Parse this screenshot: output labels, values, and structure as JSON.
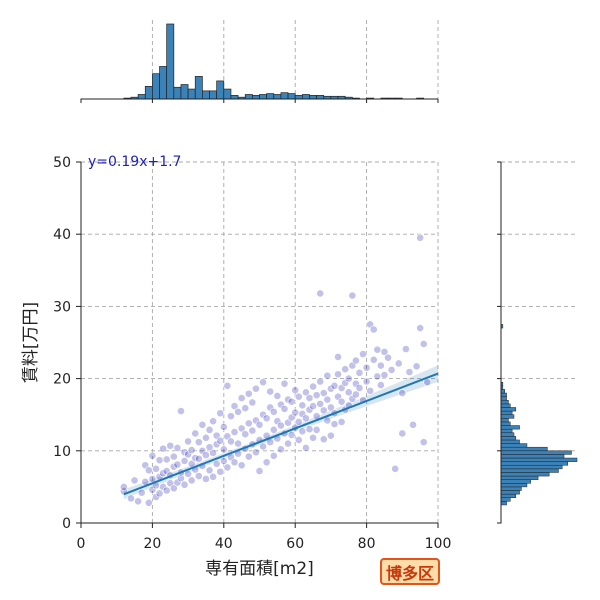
{
  "chart_data": {
    "type": "scatter",
    "xlabel": "専有面積[m2]",
    "ylabel": "賃料[万円]",
    "xlim": [
      0,
      100
    ],
    "ylim": [
      0,
      50
    ],
    "x_ticks": [
      0,
      20,
      40,
      60,
      80,
      100
    ],
    "y_ticks": [
      0,
      10,
      20,
      30,
      40,
      50
    ],
    "grid": true,
    "regression": {
      "equation": "y=0.19x+1.7",
      "slope": 0.19,
      "intercept": 1.7,
      "x_range": [
        12,
        100
      ]
    },
    "marker_color": "#1f1fb4",
    "line_color": "#1f77b4",
    "hist_color": "#3b82b9",
    "points": [
      [
        12,
        4.4
      ],
      [
        12,
        5.0
      ],
      [
        14,
        3.4
      ],
      [
        15,
        5.9
      ],
      [
        16,
        3.0
      ],
      [
        17,
        4.2
      ],
      [
        18,
        5.7
      ],
      [
        18,
        8.0
      ],
      [
        19,
        2.8
      ],
      [
        19,
        7.3
      ],
      [
        20,
        4.6
      ],
      [
        20,
        6.1
      ],
      [
        20,
        9.3
      ],
      [
        21,
        3.6
      ],
      [
        21,
        5.2
      ],
      [
        21,
        7.5
      ],
      [
        22,
        4.1
      ],
      [
        22,
        6.4
      ],
      [
        22,
        8.7
      ],
      [
        23,
        5.0
      ],
      [
        23,
        6.9
      ],
      [
        23,
        10.3
      ],
      [
        24,
        4.5
      ],
      [
        24,
        7.2
      ],
      [
        24,
        8.8
      ],
      [
        25,
        5.5
      ],
      [
        25,
        6.6
      ],
      [
        25,
        10.7
      ],
      [
        26,
        4.8
      ],
      [
        26,
        7.8
      ],
      [
        26,
        9.2
      ],
      [
        27,
        5.6
      ],
      [
        27,
        8.1
      ],
      [
        27,
        10.4
      ],
      [
        28,
        6.2
      ],
      [
        28,
        7.0
      ],
      [
        28,
        15.5
      ],
      [
        29,
        5.3
      ],
      [
        29,
        8.6
      ],
      [
        29,
        9.8
      ],
      [
        30,
        6.8
      ],
      [
        30,
        9.5
      ],
      [
        30,
        11.3
      ],
      [
        31,
        5.9
      ],
      [
        31,
        8.2
      ],
      [
        31,
        10.1
      ],
      [
        32,
        7.4
      ],
      [
        32,
        9.0
      ],
      [
        32,
        12.4
      ],
      [
        33,
        6.5
      ],
      [
        33,
        8.9
      ],
      [
        33,
        11.2
      ],
      [
        34,
        7.9
      ],
      [
        34,
        10.0
      ],
      [
        34,
        13.6
      ],
      [
        35,
        6.1
      ],
      [
        35,
        9.4
      ],
      [
        35,
        11.8
      ],
      [
        36,
        7.3
      ],
      [
        36,
        10.5
      ],
      [
        36,
        12.9
      ],
      [
        37,
        6.4
      ],
      [
        37,
        9.7
      ],
      [
        37,
        14.1
      ],
      [
        38,
        8.2
      ],
      [
        38,
        10.9
      ],
      [
        38,
        12.1
      ],
      [
        39,
        7.1
      ],
      [
        39,
        11.4
      ],
      [
        39,
        15.2
      ],
      [
        40,
        8.6
      ],
      [
        40,
        10.2
      ],
      [
        40,
        13.3
      ],
      [
        41,
        7.7
      ],
      [
        41,
        12.0
      ],
      [
        41,
        19.0
      ],
      [
        42,
        9.1
      ],
      [
        42,
        11.3
      ],
      [
        42,
        14.8
      ],
      [
        43,
        8.4
      ],
      [
        43,
        12.6
      ],
      [
        43,
        16.2
      ],
      [
        44,
        9.6
      ],
      [
        44,
        11.0
      ],
      [
        44,
        15.4
      ],
      [
        45,
        8.0
      ],
      [
        45,
        13.1
      ],
      [
        45,
        17.3
      ],
      [
        46,
        10.3
      ],
      [
        46,
        12.3
      ],
      [
        46,
        15.9
      ],
      [
        47,
        9.2
      ],
      [
        47,
        13.8
      ],
      [
        47,
        17.9
      ],
      [
        48,
        10.9
      ],
      [
        48,
        12.8
      ],
      [
        48,
        16.7
      ],
      [
        49,
        9.8
      ],
      [
        49,
        14.2
      ],
      [
        49,
        18.6
      ],
      [
        50,
        11.5
      ],
      [
        50,
        13.6
      ],
      [
        50,
        7.2
      ],
      [
        51,
        10.6
      ],
      [
        51,
        15.0
      ],
      [
        51,
        19.5
      ],
      [
        52,
        12.1
      ],
      [
        52,
        14.5
      ],
      [
        52,
        8.4
      ],
      [
        53,
        11.2
      ],
      [
        53,
        16.0
      ],
      [
        53,
        18.2
      ],
      [
        54,
        12.9
      ],
      [
        54,
        15.4
      ],
      [
        54,
        9.3
      ],
      [
        55,
        11.7
      ],
      [
        55,
        14.1
      ],
      [
        55,
        17.6
      ],
      [
        56,
        13.5
      ],
      [
        56,
        16.4
      ],
      [
        56,
        10.2
      ],
      [
        57,
        12.4
      ],
      [
        57,
        15.8
      ],
      [
        57,
        19.3
      ],
      [
        58,
        13.9
      ],
      [
        58,
        17.1
      ],
      [
        58,
        11.0
      ],
      [
        59,
        14.6
      ],
      [
        59,
        16.8
      ],
      [
        59,
        12.2
      ],
      [
        60,
        13.2
      ],
      [
        60,
        15.3
      ],
      [
        60,
        18.4
      ],
      [
        61,
        14.0
      ],
      [
        61,
        17.5
      ],
      [
        61,
        11.5
      ],
      [
        62,
        15.1
      ],
      [
        62,
        16.3
      ],
      [
        62,
        12.7
      ],
      [
        63,
        14.5
      ],
      [
        63,
        18.1
      ],
      [
        63,
        10.4
      ],
      [
        64,
        15.7
      ],
      [
        64,
        17.3
      ],
      [
        64,
        13.0
      ],
      [
        65,
        16.2
      ],
      [
        65,
        18.9
      ],
      [
        65,
        11.8
      ],
      [
        66,
        14.8
      ],
      [
        66,
        17.7
      ],
      [
        66,
        12.9
      ],
      [
        67,
        31.8
      ],
      [
        67,
        16.5
      ],
      [
        67,
        19.6
      ],
      [
        68,
        15.6
      ],
      [
        68,
        18.0
      ],
      [
        68,
        11.6
      ],
      [
        69,
        17.1
      ],
      [
        69,
        14.2
      ],
      [
        69,
        20.4
      ],
      [
        70,
        16.0
      ],
      [
        70,
        18.6
      ],
      [
        70,
        12.1
      ],
      [
        71,
        15.2
      ],
      [
        71,
        19.0
      ],
      [
        71,
        13.7
      ],
      [
        72,
        17.5
      ],
      [
        72,
        20.6
      ],
      [
        72,
        23.0
      ],
      [
        73,
        16.8
      ],
      [
        73,
        14.0
      ],
      [
        73,
        18.7
      ],
      [
        74,
        19.4
      ],
      [
        74,
        15.7
      ],
      [
        74,
        21.3
      ],
      [
        75,
        18.1
      ],
      [
        75,
        16.3
      ],
      [
        75,
        20.0
      ],
      [
        76,
        31.5
      ],
      [
        76,
        17.2
      ],
      [
        76,
        21.8
      ],
      [
        77,
        19.3
      ],
      [
        77,
        17.8
      ],
      [
        77,
        22.5
      ],
      [
        78,
        18.7
      ],
      [
        78,
        20.8
      ],
      [
        79,
        17.0
      ],
      [
        79,
        23.4
      ],
      [
        80,
        19.6
      ],
      [
        80,
        21.5
      ],
      [
        81,
        27.5
      ],
      [
        81,
        18.3
      ],
      [
        82,
        22.6
      ],
      [
        82,
        26.8
      ],
      [
        83,
        20.3
      ],
      [
        83,
        24.0
      ],
      [
        84,
        21.8
      ],
      [
        84,
        19.1
      ],
      [
        85,
        23.7
      ],
      [
        85,
        20.5
      ],
      [
        86,
        22.9
      ],
      [
        87,
        21.2
      ],
      [
        88,
        7.5
      ],
      [
        89,
        22.1
      ],
      [
        90,
        18.0
      ],
      [
        90,
        12.4
      ],
      [
        91,
        24.1
      ],
      [
        92,
        20.9
      ],
      [
        93,
        13.6
      ],
      [
        94,
        21.7
      ],
      [
        95,
        39.5
      ],
      [
        95,
        27.0
      ],
      [
        96,
        11.2
      ],
      [
        96,
        24.8
      ],
      [
        97,
        19.5
      ]
    ],
    "x_histogram": [
      {
        "x": 0,
        "count": 0
      },
      {
        "x": 12,
        "count": 1
      },
      {
        "x": 14,
        "count": 2
      },
      {
        "x": 16,
        "count": 5
      },
      {
        "x": 18,
        "count": 14
      },
      {
        "x": 20,
        "count": 28
      },
      {
        "x": 22,
        "count": 36
      },
      {
        "x": 24,
        "count": 83
      },
      {
        "x": 26,
        "count": 13
      },
      {
        "x": 28,
        "count": 16
      },
      {
        "x": 30,
        "count": 11
      },
      {
        "x": 32,
        "count": 25
      },
      {
        "x": 34,
        "count": 9
      },
      {
        "x": 36,
        "count": 9
      },
      {
        "x": 38,
        "count": 20
      },
      {
        "x": 40,
        "count": 11
      },
      {
        "x": 42,
        "count": 4
      },
      {
        "x": 44,
        "count": 2
      },
      {
        "x": 46,
        "count": 5
      },
      {
        "x": 48,
        "count": 4
      },
      {
        "x": 50,
        "count": 5
      },
      {
        "x": 52,
        "count": 6
      },
      {
        "x": 54,
        "count": 5
      },
      {
        "x": 56,
        "count": 7
      },
      {
        "x": 58,
        "count": 6
      },
      {
        "x": 60,
        "count": 4
      },
      {
        "x": 62,
        "count": 5
      },
      {
        "x": 64,
        "count": 4
      },
      {
        "x": 66,
        "count": 4
      },
      {
        "x": 68,
        "count": 3
      },
      {
        "x": 70,
        "count": 3
      },
      {
        "x": 72,
        "count": 3
      },
      {
        "x": 74,
        "count": 2
      },
      {
        "x": 76,
        "count": 1
      },
      {
        "x": 80,
        "count": 1
      },
      {
        "x": 84,
        "count": 1
      },
      {
        "x": 86,
        "count": 1
      },
      {
        "x": 88,
        "count": 1
      },
      {
        "x": 94,
        "count": 1
      }
    ],
    "x_hist_bin_width": 2,
    "x_hist_max": 83,
    "y_histogram": [
      {
        "y": 2.5,
        "count": 3
      },
      {
        "y": 3.0,
        "count": 5
      },
      {
        "y": 3.5,
        "count": 8
      },
      {
        "y": 4.0,
        "count": 10
      },
      {
        "y": 4.5,
        "count": 11
      },
      {
        "y": 5.0,
        "count": 14
      },
      {
        "y": 5.5,
        "count": 16
      },
      {
        "y": 6.0,
        "count": 20
      },
      {
        "y": 6.5,
        "count": 26
      },
      {
        "y": 7.0,
        "count": 31
      },
      {
        "y": 7.5,
        "count": 33
      },
      {
        "y": 8.0,
        "count": 36
      },
      {
        "y": 8.5,
        "count": 41
      },
      {
        "y": 9.0,
        "count": 34
      },
      {
        "y": 9.5,
        "count": 38
      },
      {
        "y": 10.0,
        "count": 25
      },
      {
        "y": 10.5,
        "count": 14
      },
      {
        "y": 11.0,
        "count": 10
      },
      {
        "y": 11.5,
        "count": 8
      },
      {
        "y": 12.0,
        "count": 7
      },
      {
        "y": 12.5,
        "count": 6
      },
      {
        "y": 13.0,
        "count": 10
      },
      {
        "y": 13.5,
        "count": 5
      },
      {
        "y": 14.0,
        "count": 4
      },
      {
        "y": 14.5,
        "count": 7
      },
      {
        "y": 15.0,
        "count": 6
      },
      {
        "y": 15.5,
        "count": 8
      },
      {
        "y": 16.0,
        "count": 5
      },
      {
        "y": 16.5,
        "count": 4
      },
      {
        "y": 17.0,
        "count": 3
      },
      {
        "y": 17.5,
        "count": 3
      },
      {
        "y": 18.0,
        "count": 2
      },
      {
        "y": 18.5,
        "count": 1
      },
      {
        "y": 19.0,
        "count": 1
      },
      {
        "y": 27.0,
        "count": 1
      }
    ],
    "y_hist_bin_width": 0.5,
    "y_hist_max": 41
  },
  "badge": {
    "label": "博多区"
  }
}
